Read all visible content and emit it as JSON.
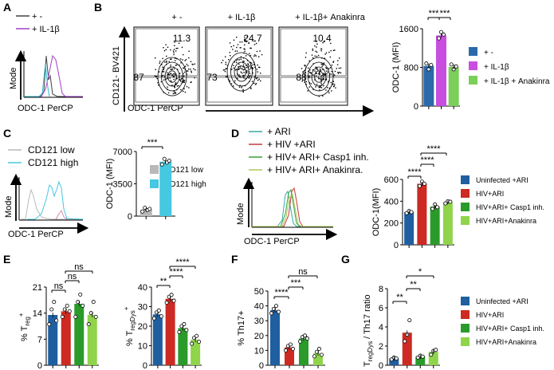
{
  "colors": {
    "uninfected": "#1f5fa0",
    "hiv": "#cc2a22",
    "casp1": "#2a9b2a",
    "anakinra": "#8fd44a",
    "ctrl_blue": "#2a6aaa",
    "il1b_purple": "#c84ee0",
    "il1b_anakinra_green": "#7ccf5a",
    "cd121_low": "#b9b9b9",
    "cd121_high": "#45c8e0",
    "hist_black": "#444444",
    "hist_purple": "#a040c8",
    "hist_teal": "#35b9c9",
    "hist_ari_teal": "#39a9a9",
    "hist_red": "#c83838",
    "hist_green": "#39a039",
    "hist_lime": "#a9c95a"
  },
  "panels": {
    "A": {
      "letter": "A",
      "legend": [
        "+ -",
        "+ IL-1β"
      ],
      "ylabel": "Mode",
      "xlabel": "ODC-1 PerCP"
    },
    "B": {
      "letter": "B",
      "flow_titles": [
        "+ -",
        "+ IL-1β",
        "+ IL-1β+ Anakinra"
      ],
      "upper_pct": [
        "11.3",
        "24.7",
        "10.4"
      ],
      "lower_pct": [
        "87",
        "73",
        "88"
      ],
      "ylabel": "CD121- BV421",
      "xlabel": "ODC-1 PerCP",
      "legend": [
        "+ -",
        "+ IL-1β",
        "+ IL-1β + Anakinra"
      ],
      "sig": [
        "***",
        "***"
      ]
    },
    "C": {
      "letter": "C",
      "legend": [
        "CD121 low",
        "CD121 high"
      ],
      "ylabel": "Mode",
      "xlabel": "ODC-1 PerCP",
      "sig": [
        "***"
      ]
    },
    "D": {
      "letter": "D",
      "legend": [
        "+ ARI",
        "+ HIV +ARI",
        "+ HIV+ ARI+ Casp1 inh.",
        "+ HIV+ ARI+ Anakinra."
      ],
      "ylabel": "Mode",
      "xlabel": "ODC-1 PerCP",
      "sig": [
        "****",
        "****",
        "****"
      ]
    },
    "E": {
      "letter": "E",
      "sig_treg": [
        "ns",
        "ns",
        "ns"
      ],
      "sig_tregdys": [
        "**",
        "****",
        "****"
      ],
      "ylabel_treg": "% T",
      "ylabel_treg_sub": "reg",
      "ylabel_treg_sup": "+",
      "ylabel_dys": "% T",
      "ylabel_dys_sub": "regDys",
      "ylabel_dys_sup": "+"
    },
    "F": {
      "letter": "F",
      "sig": [
        "****",
        "***",
        "ns"
      ]
    },
    "G": {
      "letter": "G",
      "sig": [
        "**",
        "**",
        "*"
      ],
      "ylabel_main": "T",
      "ylabel_sub": "regDys",
      "ylabel_rest": " / Th17 ratio"
    },
    "legend_groups": [
      "Uninfected +ARI",
      "HIV+ARI",
      "HIV+ARI+ Casp1 inh.",
      "HIV+ARI+Anakinra"
    ]
  },
  "chart_data": [
    {
      "id": "B_bar",
      "type": "bar",
      "categories": [
        "+ -",
        "+ IL-1β",
        "+ IL-1β + Anakinra"
      ],
      "values": [
        830,
        1460,
        810
      ],
      "points": [
        [
          880,
          760,
          850
        ],
        [
          1400,
          1530,
          1480
        ],
        [
          860,
          760,
          820
        ]
      ],
      "colors": [
        "#2a6aaa",
        "#c84ee0",
        "#7ccf5a"
      ],
      "ylabel": "ODC-1 (MFI)",
      "ylim": [
        0,
        1600
      ],
      "yticks": [
        0,
        800,
        1600
      ]
    },
    {
      "id": "C_bar",
      "type": "bar",
      "categories": [
        "CD121 low",
        "CD121 high"
      ],
      "values": [
        700,
        5900
      ],
      "points": [
        [
          500,
          900,
          650,
          780
        ],
        [
          5600,
          6200,
          5800,
          6000
        ]
      ],
      "colors": [
        "#b9b9b9",
        "#45c8e0"
      ],
      "ylabel": "ODC-1 (MFI)",
      "ylim": [
        0,
        7000
      ],
      "yticks": [
        0,
        3500,
        7000
      ]
    },
    {
      "id": "D_bar",
      "type": "bar",
      "categories": [
        "Uninfected +ARI",
        "HIV+ARI",
        "HIV+ARI+ Casp1 inh.",
        "HIV+ARI+Anakinra"
      ],
      "values": [
        300,
        560,
        350,
        390
      ],
      "points": [
        [
          290,
          310,
          300
        ],
        [
          540,
          580,
          560
        ],
        [
          330,
          370,
          345
        ],
        [
          380,
          400,
          395
        ]
      ],
      "colors": [
        "#1f5fa0",
        "#cc2a22",
        "#2a9b2a",
        "#8fd44a"
      ],
      "ylabel": "ODC-1(MFI)",
      "ylim": [
        0,
        600
      ],
      "yticks": [
        0,
        200,
        400,
        600
      ]
    },
    {
      "id": "E_treg",
      "type": "bar",
      "categories": [
        "Uninfected +ARI",
        "HIV+ARI",
        "HIV+ARI+ Casp1 inh.",
        "HIV+ARI+Anakinra"
      ],
      "values": [
        13.5,
        14.5,
        16.5,
        13.5
      ],
      "points": [
        [
          11,
          15,
          17,
          12
        ],
        [
          13,
          15,
          16,
          14.5
        ],
        [
          13,
          17,
          19,
          16
        ],
        [
          11,
          14,
          17,
          13
        ]
      ],
      "colors": [
        "#1f5fa0",
        "#cc2a22",
        "#2a9b2a",
        "#8fd44a"
      ],
      "ylim": [
        0,
        21
      ],
      "yticks": [
        0,
        7,
        14,
        21
      ]
    },
    {
      "id": "E_tregdys",
      "type": "bar",
      "categories": [
        "Uninfected +ARI",
        "HIV+ARI",
        "HIV+ARI+ Casp1 inh.",
        "HIV+ARI+Anakinra"
      ],
      "values": [
        26,
        34,
        19,
        13
      ],
      "points": [
        [
          24,
          27,
          28,
          25
        ],
        [
          32,
          35,
          36,
          33
        ],
        [
          17,
          20,
          21,
          18
        ],
        [
          11,
          14,
          15,
          12
        ]
      ],
      "colors": [
        "#1f5fa0",
        "#cc2a22",
        "#2a9b2a",
        "#8fd44a"
      ],
      "ylim": [
        0,
        40
      ],
      "yticks": [
        0,
        10,
        20,
        30,
        40
      ]
    },
    {
      "id": "F_th17",
      "type": "bar",
      "categories": [
        "Uninfected +ARI",
        "HIV+ARI",
        "HIV+ARI+ Casp1 inh.",
        "HIV+ARI+Anakinra"
      ],
      "values": [
        37,
        12,
        18,
        8
      ],
      "points": [
        [
          35,
          38,
          40,
          36
        ],
        [
          10,
          13,
          14,
          11
        ],
        [
          16,
          19,
          20,
          18
        ],
        [
          6,
          9,
          11,
          7
        ]
      ],
      "colors": [
        "#1f5fa0",
        "#cc2a22",
        "#2a9b2a",
        "#8fd44a"
      ],
      "ylabel": "% Th17+",
      "ylim": [
        0,
        50
      ],
      "yticks": [
        0,
        10,
        20,
        30,
        40,
        50
      ]
    },
    {
      "id": "G_ratio",
      "type": "bar",
      "categories": [
        "Uninfected +ARI",
        "HIV+ARI",
        "HIV+ARI+ Casp1 inh.",
        "HIV+ARI+Anakinra"
      ],
      "values": [
        0.7,
        3.4,
        0.9,
        1.4
      ],
      "points": [
        [
          0.6,
          0.8,
          0.7
        ],
        [
          2.5,
          3.2,
          4.7
        ],
        [
          0.8,
          1.0,
          0.9
        ],
        [
          1.1,
          1.5,
          1.6
        ]
      ],
      "colors": [
        "#1f5fa0",
        "#cc2a22",
        "#2a9b2a",
        "#8fd44a"
      ],
      "ylim": [
        0,
        8
      ],
      "yticks": [
        0,
        2,
        4,
        6,
        8
      ]
    }
  ]
}
